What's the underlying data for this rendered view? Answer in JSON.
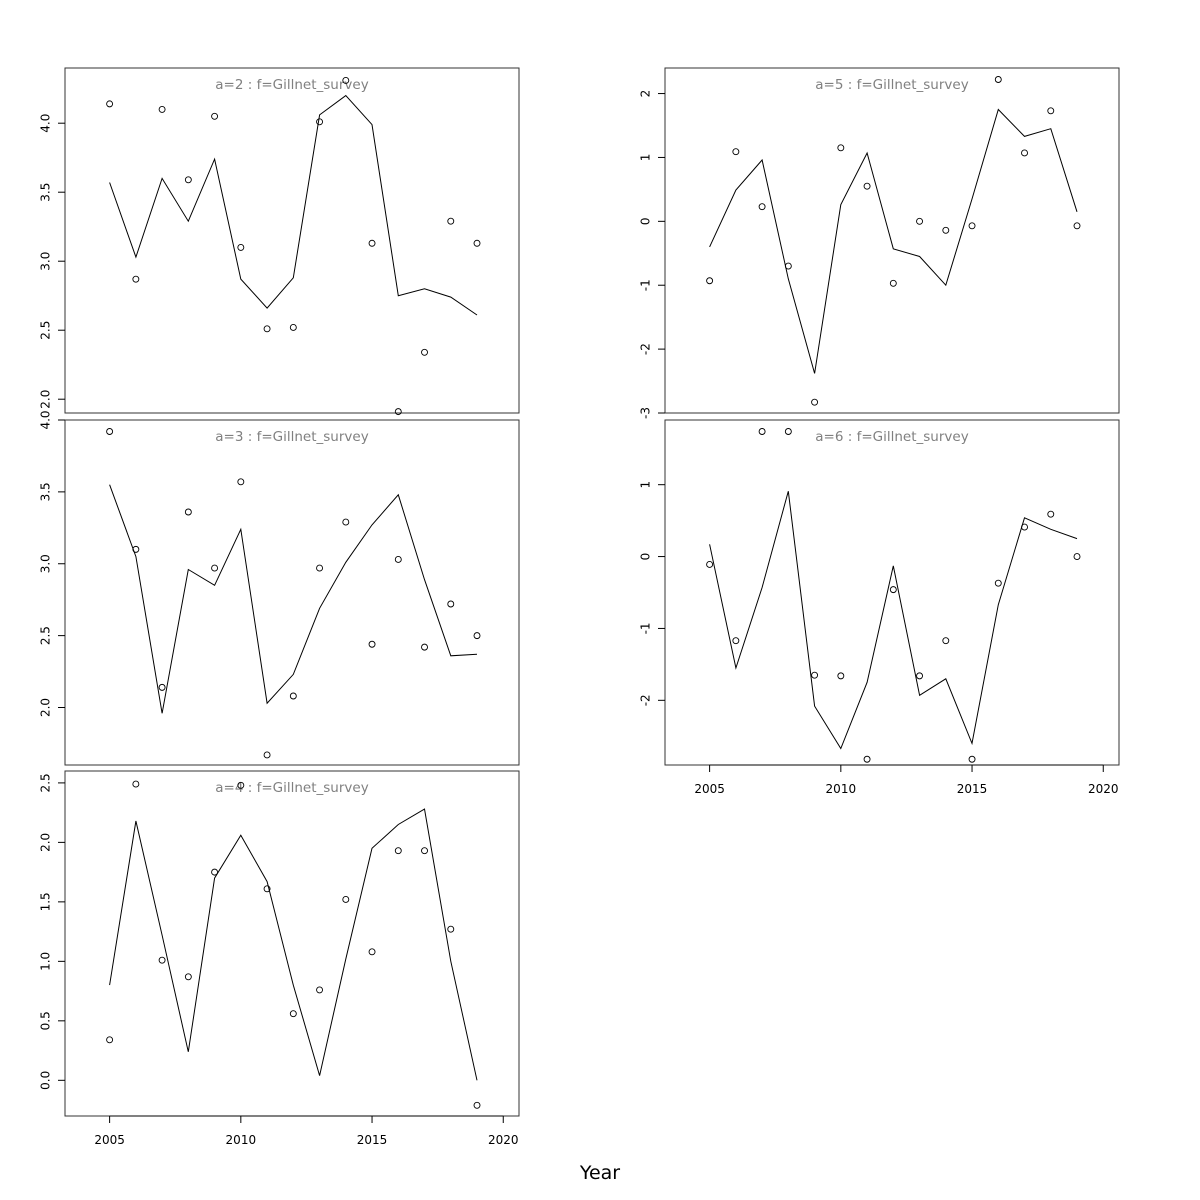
{
  "figure": {
    "xlabel": "Year",
    "colors": {
      "observed": "#000000",
      "fitted": "#000000",
      "title": "#808080",
      "frame": "#333333"
    }
  },
  "chart_data": [
    {
      "type": "scatter",
      "title": "a=2  :  f=Gillnet_survey",
      "ylim": [
        1.9,
        4.4
      ],
      "yticks": [
        2.0,
        2.5,
        3.0,
        3.5,
        4.0
      ],
      "xlim": [
        2003.3,
        2020.6
      ],
      "x": [
        2005,
        2006,
        2007,
        2008,
        2009,
        2010,
        2011,
        2012,
        2013,
        2014,
        2015,
        2016,
        2017,
        2018,
        2019
      ],
      "series": [
        {
          "kind": "observed",
          "values": [
            4.14,
            2.87,
            4.1,
            3.59,
            4.05,
            3.1,
            2.51,
            2.52,
            4.01,
            4.31,
            3.13,
            1.91,
            2.34,
            3.29,
            3.13
          ]
        },
        {
          "kind": "fitted",
          "values": [
            3.57,
            3.03,
            3.6,
            3.29,
            3.74,
            2.87,
            2.66,
            2.88,
            4.06,
            4.2,
            3.99,
            2.75,
            2.8,
            2.74,
            2.61
          ]
        }
      ]
    },
    {
      "type": "scatter",
      "title": "a=3  :  f=Gillnet_survey",
      "ylim": [
        1.6,
        4.0
      ],
      "yticks": [
        2.0,
        2.5,
        3.0,
        3.5,
        4.0
      ],
      "xlim": [
        2003.3,
        2020.6
      ],
      "x": [
        2005,
        2006,
        2007,
        2008,
        2009,
        2010,
        2011,
        2012,
        2013,
        2014,
        2015,
        2016,
        2017,
        2018,
        2019
      ],
      "series": [
        {
          "kind": "observed",
          "values": [
            3.92,
            3.1,
            2.14,
            3.36,
            2.97,
            3.57,
            1.67,
            2.08,
            2.97,
            3.29,
            2.44,
            3.03,
            2.42,
            2.72,
            2.5
          ]
        },
        {
          "kind": "fitted",
          "values": [
            3.55,
            3.05,
            1.96,
            2.96,
            2.85,
            3.24,
            2.03,
            2.23,
            2.69,
            3.01,
            3.27,
            3.48,
            2.89,
            2.36,
            2.37
          ]
        }
      ]
    },
    {
      "type": "scatter",
      "title": "a=4  :  f=Gillnet_survey",
      "ylim": [
        -0.3,
        2.6
      ],
      "yticks": [
        0.0,
        0.5,
        1.0,
        1.5,
        2.0,
        2.5
      ],
      "xlim": [
        2003.3,
        2020.6
      ],
      "x": [
        2005,
        2006,
        2007,
        2008,
        2009,
        2010,
        2011,
        2012,
        2013,
        2014,
        2015,
        2016,
        2017,
        2018,
        2019
      ],
      "series": [
        {
          "kind": "observed",
          "values": [
            0.34,
            2.49,
            1.01,
            0.87,
            1.75,
            2.48,
            1.61,
            0.56,
            0.76,
            1.52,
            1.08,
            1.93,
            1.93,
            1.27,
            -0.21
          ]
        },
        {
          "kind": "fitted",
          "values": [
            0.8,
            2.18,
            1.22,
            0.24,
            1.7,
            2.06,
            1.67,
            0.8,
            0.04,
            1.02,
            1.95,
            2.15,
            2.28,
            1.0,
            0.0
          ]
        }
      ]
    },
    {
      "type": "scatter",
      "title": "a=5  :  f=Gillnet_survey",
      "ylim": [
        -3.0,
        2.4
      ],
      "yticks": [
        -3,
        -2,
        -1,
        0,
        1,
        2
      ],
      "xlim": [
        2003.3,
        2020.6
      ],
      "x": [
        2005,
        2006,
        2007,
        2008,
        2009,
        2010,
        2011,
        2012,
        2013,
        2014,
        2015,
        2016,
        2017,
        2018,
        2019
      ],
      "series": [
        {
          "kind": "observed",
          "values": [
            -0.93,
            1.09,
            0.23,
            -0.7,
            -2.83,
            1.15,
            0.55,
            -0.97,
            0.0,
            -0.14,
            -0.07,
            2.22,
            1.07,
            1.73,
            -0.07
          ]
        },
        {
          "kind": "fitted",
          "values": [
            -0.4,
            0.49,
            0.96,
            -0.9,
            -2.38,
            0.26,
            1.07,
            -0.43,
            -0.55,
            -1.0,
            0.35,
            1.75,
            1.33,
            1.45,
            0.15
          ]
        }
      ]
    },
    {
      "type": "scatter",
      "title": "a=6  :  f=Gillnet_survey",
      "ylim": [
        -2.9,
        1.9
      ],
      "yticks": [
        -2,
        -1,
        0,
        1
      ],
      "xlim": [
        2003.3,
        2020.6
      ],
      "xticks": [
        2005,
        2010,
        2015,
        2020
      ],
      "x": [
        2005,
        2006,
        2007,
        2008,
        2009,
        2010,
        2011,
        2012,
        2013,
        2014,
        2015,
        2016,
        2017,
        2018,
        2019
      ],
      "series": [
        {
          "kind": "observed",
          "values": [
            -0.11,
            -1.17,
            1.74,
            1.74,
            -1.65,
            -1.66,
            -2.82,
            -0.46,
            -1.66,
            -1.17,
            -2.82,
            -0.37,
            0.41,
            0.59,
            0.0
          ]
        },
        {
          "kind": "fitted",
          "values": [
            0.17,
            -1.55,
            -0.43,
            0.91,
            -2.08,
            -2.67,
            -1.75,
            -0.13,
            -1.93,
            -1.7,
            -2.6,
            -0.67,
            0.54,
            0.38,
            0.25
          ]
        }
      ]
    }
  ]
}
